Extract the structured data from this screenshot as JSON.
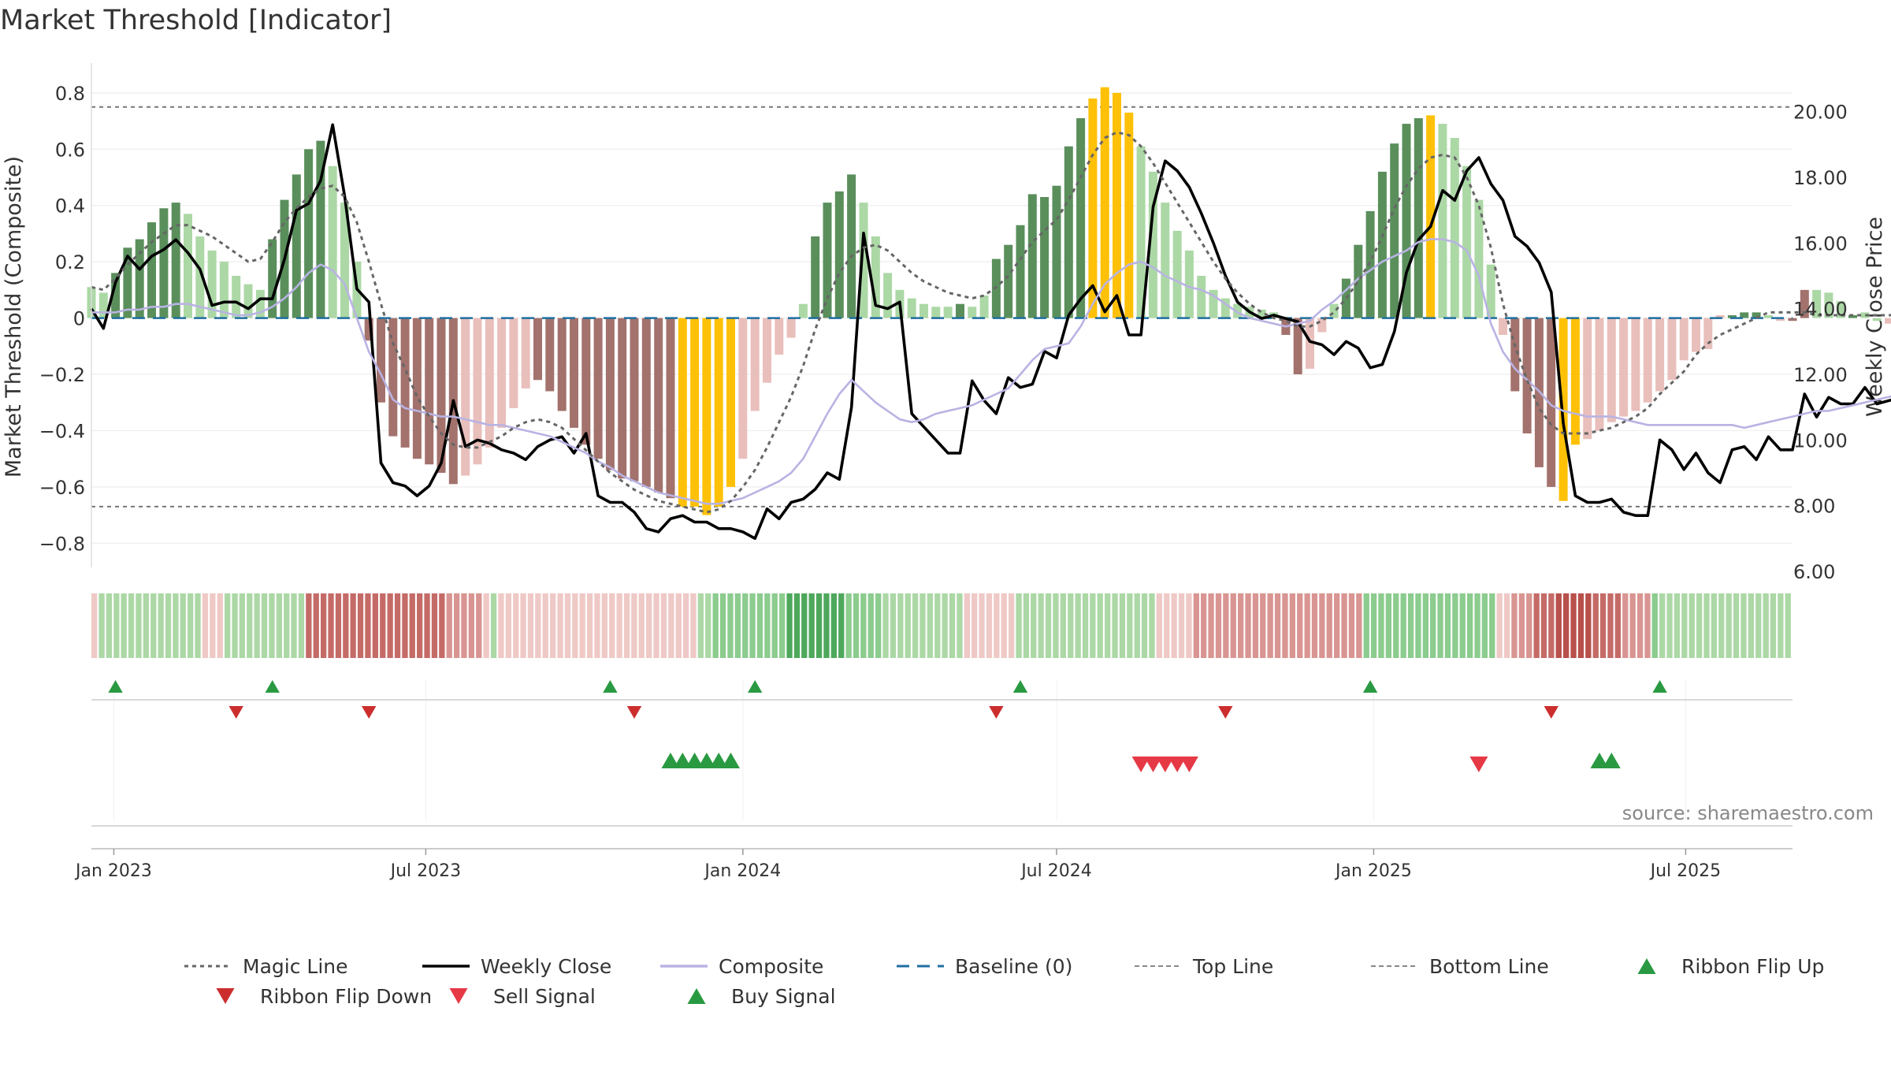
{
  "chart_data": {
    "type": "bar",
    "title": "Market Threshold [Indicator]",
    "ylabel_left": "Market Threshold (Composite)",
    "ylabel_right": "Weekly Close Price",
    "source": "source: sharemaestro.com",
    "y_left_range": [
      -0.9,
      0.85
    ],
    "y_left_ticks": [
      0.8,
      0.6,
      0.4,
      0.2,
      0,
      -0.2,
      -0.4,
      -0.6,
      -0.8
    ],
    "y_left_tick_labels": [
      "0.8",
      "0.6",
      "0.4",
      "0.2",
      "0",
      "−0.2",
      "−0.4",
      "−0.6",
      "−0.8"
    ],
    "y_right_range": [
      6.0,
      21.0
    ],
    "y_right_ticks": [
      20,
      18,
      16,
      14,
      12,
      10,
      8,
      6
    ],
    "y_right_tick_labels": [
      "20.00",
      "18.00",
      "16.00",
      "14.00",
      "12.00",
      "10.00",
      "8.00",
      "6.00"
    ],
    "x_range": [
      "2022-12-19",
      "2025-09-01"
    ],
    "x_ticks": [
      "2023-01-01",
      "2023-07-01",
      "2024-01-01",
      "2024-07-01",
      "2025-01-01",
      "2025-07-01"
    ],
    "x_tick_labels": [
      "Jan 2023",
      "Jul 2023",
      "Jan 2024",
      "Jul 2024",
      "Jan 2025",
      "Jul 2025"
    ],
    "start_date": "2022-12-19",
    "top_line": 0.75,
    "bottom_line": -0.67,
    "colors": {
      "strong_up": "#5a8f5c",
      "weak_up": "#acd8a6",
      "strong_down": "#a3726d",
      "weak_down": "#e9bfbb",
      "extreme": "#ffc107",
      "weekly_close": "#000000",
      "composite": "#b9b3e3",
      "magic_line": "#666666",
      "baseline": "#1f6fa0",
      "threshold": "#777777",
      "ribbon_up": "#2a9a42",
      "ribbon_down": "#cc2e2e",
      "sell": "#e63946",
      "buy": "#2a9a42"
    },
    "composite_bars": [
      0.11,
      0.09,
      0.16,
      0.25,
      0.28,
      0.34,
      0.39,
      0.41,
      0.37,
      0.29,
      0.24,
      0.2,
      0.15,
      0.12,
      0.1,
      0.28,
      0.42,
      0.51,
      0.6,
      0.63,
      0.54,
      0.41,
      0.2,
      -0.08,
      -0.3,
      -0.42,
      -0.46,
      -0.5,
      -0.52,
      -0.55,
      -0.59,
      -0.56,
      -0.52,
      -0.46,
      -0.39,
      -0.32,
      -0.25,
      -0.22,
      -0.26,
      -0.33,
      -0.39,
      -0.45,
      -0.5,
      -0.54,
      -0.57,
      -0.58,
      -0.6,
      -0.62,
      -0.64,
      -0.67,
      -0.67,
      -0.7,
      -0.67,
      -0.6,
      -0.5,
      -0.33,
      -0.23,
      -0.13,
      -0.07,
      0.05,
      0.29,
      0.41,
      0.45,
      0.51,
      0.41,
      0.29,
      0.16,
      0.1,
      0.07,
      0.05,
      0.04,
      0.04,
      0.05,
      0.04,
      0.08,
      0.21,
      0.26,
      0.33,
      0.44,
      0.43,
      0.47,
      0.61,
      0.71,
      0.78,
      0.82,
      0.8,
      0.73,
      0.61,
      0.52,
      0.41,
      0.31,
      0.24,
      0.15,
      0.1,
      0.07,
      0.05,
      0.04,
      0.03,
      0.02,
      -0.06,
      -0.2,
      -0.18,
      -0.05,
      0.05,
      0.14,
      0.26,
      0.38,
      0.52,
      0.62,
      0.69,
      0.71,
      0.72,
      0.69,
      0.64,
      0.54,
      0.42,
      0.19,
      -0.06,
      -0.26,
      -0.41,
      -0.53,
      -0.6,
      -0.65,
      -0.45,
      -0.43,
      -0.4,
      -0.37,
      -0.35,
      -0.33,
      -0.3,
      -0.26,
      -0.22,
      -0.15,
      -0.12,
      -0.11,
      0.01,
      0.01,
      0.02,
      0.02,
      0.01,
      -0.01,
      -0.01,
      0.1,
      0.1,
      0.09,
      0.06,
      0.01,
      0.02,
      -0.01,
      -0.02,
      0.01,
      0.06,
      0.08,
      0.07
    ],
    "bar_categories": [
      "weak_up",
      "weak_up",
      "strong_up",
      "strong_up",
      "strong_up",
      "strong_up",
      "strong_up",
      "strong_up",
      "weak_up",
      "weak_up",
      "weak_up",
      "weak_up",
      "weak_up",
      "weak_up",
      "weak_up",
      "strong_up",
      "strong_up",
      "strong_up",
      "strong_up",
      "strong_up",
      "weak_up",
      "weak_up",
      "weak_up",
      "strong_down",
      "strong_down",
      "strong_down",
      "strong_down",
      "strong_down",
      "strong_down",
      "strong_down",
      "strong_down",
      "weak_down",
      "weak_down",
      "weak_down",
      "weak_down",
      "weak_down",
      "weak_down",
      "strong_down",
      "strong_down",
      "strong_down",
      "strong_down",
      "strong_down",
      "strong_down",
      "strong_down",
      "strong_down",
      "strong_down",
      "strong_down",
      "strong_down",
      "strong_down",
      "extreme",
      "extreme",
      "extreme",
      "extreme",
      "extreme",
      "weak_down",
      "weak_down",
      "weak_down",
      "weak_down",
      "weak_down",
      "weak_up",
      "strong_up",
      "strong_up",
      "strong_up",
      "strong_up",
      "weak_up",
      "weak_up",
      "weak_up",
      "weak_up",
      "weak_up",
      "weak_up",
      "weak_up",
      "weak_up",
      "strong_up",
      "weak_up",
      "weak_up",
      "strong_up",
      "strong_up",
      "strong_up",
      "strong_up",
      "strong_up",
      "strong_up",
      "strong_up",
      "strong_up",
      "extreme",
      "extreme",
      "extreme",
      "extreme",
      "weak_up",
      "weak_up",
      "weak_up",
      "weak_up",
      "weak_up",
      "weak_up",
      "weak_up",
      "weak_up",
      "weak_up",
      "weak_up",
      "weak_up",
      "weak_up",
      "strong_down",
      "strong_down",
      "weak_down",
      "weak_down",
      "weak_up",
      "strong_up",
      "strong_up",
      "strong_up",
      "strong_up",
      "strong_up",
      "strong_up",
      "strong_up",
      "extreme",
      "weak_up",
      "weak_up",
      "weak_up",
      "weak_up",
      "weak_up",
      "weak_down",
      "strong_down",
      "strong_down",
      "strong_down",
      "strong_down",
      "extreme",
      "extreme",
      "weak_down",
      "weak_down",
      "weak_down",
      "weak_down",
      "weak_down",
      "weak_down",
      "weak_down",
      "weak_down",
      "weak_down",
      "weak_down",
      "weak_down",
      "weak_down",
      "strong_up",
      "strong_up",
      "strong_up",
      "weak_up",
      "weak_down",
      "strong_down",
      "strong_down",
      "weak_up",
      "weak_up",
      "weak_up",
      "strong_up",
      "weak_up",
      "weak_up",
      "weak_down",
      "weak_down",
      "strong_up",
      "strong_up",
      "strong_up",
      "weak_up"
    ],
    "series": [
      {
        "name": "Weekly Close",
        "axis": "right",
        "values": [
          14.0,
          13.4,
          14.8,
          15.6,
          15.2,
          15.6,
          15.8,
          16.1,
          15.7,
          15.2,
          14.1,
          14.2,
          14.2,
          14.0,
          14.3,
          14.3,
          15.5,
          17.0,
          17.2,
          17.9,
          19.6,
          17.4,
          14.6,
          14.2,
          9.3,
          8.7,
          8.6,
          8.3,
          8.6,
          9.3,
          11.2,
          9.8,
          10.0,
          9.9,
          9.7,
          9.6,
          9.4,
          9.8,
          10.0,
          10.1,
          9.6,
          10.2,
          8.3,
          8.1,
          8.1,
          7.8,
          7.3,
          7.2,
          7.6,
          7.7,
          7.5,
          7.5,
          7.3,
          7.3,
          7.2,
          7.0,
          7.9,
          7.6,
          8.1,
          8.2,
          8.5,
          9.0,
          8.8,
          11.0,
          16.3,
          14.1,
          14.0,
          14.2,
          10.8,
          10.4,
          10.0,
          9.6,
          9.6,
          11.8,
          11.2,
          10.8,
          11.9,
          11.6,
          11.7,
          12.7,
          12.5,
          13.8,
          14.3,
          14.7,
          13.9,
          14.4,
          13.2,
          13.2,
          17.1,
          18.5,
          18.2,
          17.7,
          16.9,
          16.0,
          15.0,
          14.2,
          13.9,
          13.7,
          13.8,
          13.7,
          13.6,
          13.0,
          12.9,
          12.6,
          13.0,
          12.8,
          12.2,
          12.3,
          13.3,
          15.1,
          16.1,
          16.5,
          17.6,
          17.3,
          18.2,
          18.6,
          17.8,
          17.3,
          16.2,
          15.9,
          15.4,
          14.5,
          10.5,
          8.3,
          8.1,
          8.1,
          8.2,
          7.8,
          7.7,
          7.7,
          10.0,
          9.7,
          9.1,
          9.6,
          9.0,
          8.7,
          9.7,
          9.8,
          9.4,
          10.1,
          9.7,
          9.7,
          11.4,
          10.7,
          11.3,
          11.1,
          11.1,
          11.6,
          11.1,
          11.2,
          11.3,
          11.2,
          11.5,
          11.8,
          11.0
        ],
        "color": "#000000"
      },
      {
        "name": "Composite",
        "axis": "left",
        "values": [
          0.02,
          0.02,
          0.02,
          0.03,
          0.03,
          0.04,
          0.04,
          0.05,
          0.05,
          0.04,
          0.03,
          0.02,
          0.01,
          0.01,
          0.02,
          0.04,
          0.07,
          0.11,
          0.16,
          0.19,
          0.17,
          0.12,
          0.0,
          -0.12,
          -0.2,
          -0.29,
          -0.32,
          -0.33,
          -0.34,
          -0.35,
          -0.35,
          -0.36,
          -0.37,
          -0.38,
          -0.38,
          -0.39,
          -0.4,
          -0.41,
          -0.42,
          -0.44,
          -0.46,
          -0.48,
          -0.51,
          -0.53,
          -0.56,
          -0.58,
          -0.6,
          -0.62,
          -0.63,
          -0.64,
          -0.65,
          -0.66,
          -0.66,
          -0.65,
          -0.64,
          -0.62,
          -0.6,
          -0.58,
          -0.55,
          -0.5,
          -0.42,
          -0.34,
          -0.27,
          -0.22,
          -0.26,
          -0.3,
          -0.33,
          -0.36,
          -0.37,
          -0.36,
          -0.34,
          -0.33,
          -0.32,
          -0.31,
          -0.29,
          -0.27,
          -0.25,
          -0.2,
          -0.15,
          -0.11,
          -0.1,
          -0.09,
          -0.03,
          0.05,
          0.12,
          0.16,
          0.19,
          0.2,
          0.18,
          0.15,
          0.13,
          0.11,
          0.1,
          0.08,
          0.05,
          0.02,
          0.0,
          -0.01,
          -0.02,
          -0.03,
          -0.02,
          -0.01,
          0.03,
          0.06,
          0.1,
          0.14,
          0.17,
          0.2,
          0.22,
          0.24,
          0.27,
          0.28,
          0.28,
          0.27,
          0.24,
          0.15,
          -0.02,
          -0.12,
          -0.18,
          -0.22,
          -0.26,
          -0.31,
          -0.33,
          -0.34,
          -0.35,
          -0.35,
          -0.35,
          -0.36,
          -0.37,
          -0.38,
          -0.38,
          -0.38,
          -0.38,
          -0.38,
          -0.38,
          -0.38,
          -0.38,
          -0.39,
          -0.38,
          -0.37,
          -0.36,
          -0.35,
          -0.34,
          -0.33,
          -0.33,
          -0.32,
          -0.31,
          -0.3,
          -0.29,
          -0.28,
          -0.27,
          -0.27,
          -0.27,
          -0.27
        ],
        "color": "#b9b3e3"
      },
      {
        "name": "Magic Line",
        "axis": "left",
        "values": [
          0.11,
          0.1,
          0.14,
          0.19,
          0.23,
          0.27,
          0.3,
          0.33,
          0.33,
          0.31,
          0.29,
          0.26,
          0.23,
          0.2,
          0.21,
          0.27,
          0.34,
          0.39,
          0.43,
          0.46,
          0.47,
          0.43,
          0.34,
          0.2,
          0.05,
          -0.09,
          -0.18,
          -0.28,
          -0.35,
          -0.41,
          -0.45,
          -0.46,
          -0.46,
          -0.44,
          -0.42,
          -0.39,
          -0.37,
          -0.36,
          -0.37,
          -0.39,
          -0.43,
          -0.47,
          -0.51,
          -0.55,
          -0.58,
          -0.61,
          -0.63,
          -0.65,
          -0.66,
          -0.67,
          -0.68,
          -0.69,
          -0.68,
          -0.65,
          -0.6,
          -0.54,
          -0.46,
          -0.37,
          -0.28,
          -0.17,
          -0.04,
          0.07,
          0.16,
          0.22,
          0.25,
          0.26,
          0.24,
          0.2,
          0.16,
          0.13,
          0.11,
          0.09,
          0.08,
          0.07,
          0.08,
          0.11,
          0.15,
          0.21,
          0.27,
          0.31,
          0.35,
          0.42,
          0.5,
          0.58,
          0.64,
          0.66,
          0.65,
          0.61,
          0.55,
          0.48,
          0.41,
          0.34,
          0.27,
          0.2,
          0.14,
          0.09,
          0.05,
          0.02,
          0.0,
          -0.01,
          -0.03,
          -0.03,
          -0.01,
          0.02,
          0.07,
          0.13,
          0.2,
          0.29,
          0.39,
          0.47,
          0.53,
          0.57,
          0.58,
          0.57,
          0.5,
          0.4,
          0.25,
          0.05,
          -0.1,
          -0.22,
          -0.32,
          -0.38,
          -0.41,
          -0.41,
          -0.41,
          -0.4,
          -0.39,
          -0.37,
          -0.35,
          -0.32,
          -0.27,
          -0.23,
          -0.19,
          -0.13,
          -0.09,
          -0.06,
          -0.04,
          -0.02,
          0.0,
          0.02,
          0.02,
          0.02,
          0.02,
          0.01,
          0.01,
          0.01,
          0.01,
          0.01,
          0.01,
          0.01,
          0.01
        ],
        "color": "#666666"
      },
      {
        "name": "Baseline (0)",
        "value": 0
      },
      {
        "name": "Top Line",
        "value": 0.75
      },
      {
        "name": "Bottom Line",
        "value": -0.67
      }
    ],
    "ribbon": [
      -1,
      1,
      1,
      1,
      1,
      1,
      1,
      1,
      1,
      1,
      1,
      1,
      1,
      1,
      1,
      -1,
      -1,
      -1,
      1,
      1,
      1,
      1,
      1,
      1,
      1,
      1,
      1,
      1,
      1,
      -3,
      -3,
      -3,
      -3,
      -3,
      -3,
      -3,
      -3,
      -3,
      -3,
      -3,
      -3,
      -3,
      -3,
      -3,
      -3,
      -3,
      -3,
      -3,
      -2,
      -2,
      -2,
      -2,
      -2,
      -1,
      1,
      -1,
      -1,
      -1,
      -1,
      -1,
      -1,
      -1,
      -1,
      -1,
      -1,
      -1,
      -1,
      -1,
      -1,
      -1,
      -1,
      -1,
      -1,
      -1,
      -1,
      -1,
      -1,
      -1,
      -1,
      -1,
      -1,
      -1,
      1,
      1,
      2,
      2,
      2,
      2,
      2,
      2,
      2,
      2,
      2,
      2,
      3,
      3,
      3,
      3,
      3,
      3,
      3,
      3,
      2,
      2,
      2,
      2,
      2,
      1,
      1,
      1,
      1,
      1,
      1,
      1,
      1,
      1,
      1,
      1,
      -1,
      -1,
      -1,
      -1,
      -1,
      -1,
      -1,
      1,
      1,
      1,
      1,
      1,
      1,
      1,
      1,
      1,
      1,
      1,
      1,
      1,
      1,
      1,
      1,
      1,
      1,
      1,
      -1,
      -1,
      -1,
      -1,
      -1,
      -2,
      -2,
      -2,
      -2,
      -2,
      -2,
      -2,
      -2,
      -2,
      -2,
      -2,
      -2,
      -2,
      -2,
      -2,
      -2,
      -2,
      -2,
      -2,
      -2,
      -2,
      -2,
      -2,
      2,
      2,
      2,
      2,
      2,
      2,
      2,
      2,
      2,
      2,
      2,
      2,
      2,
      2,
      2,
      2,
      2,
      2,
      -1,
      -1,
      -2,
      -2,
      -2,
      -3,
      -3,
      -3,
      -4,
      -4,
      -4,
      -4,
      -4,
      -3,
      -3,
      -3,
      -3,
      -2,
      -2,
      -2,
      -2,
      2,
      1,
      1,
      1,
      1,
      1,
      1,
      1,
      1,
      1,
      1,
      1,
      1,
      1,
      1,
      1,
      1,
      1,
      1
    ],
    "ribbon_flip_up": [
      "2023-01-02",
      "2023-04-03",
      "2023-10-16",
      "2024-01-08",
      "2024-06-10",
      "2024-12-30",
      "2025-06-16"
    ],
    "ribbon_flip_down": [
      "2023-03-13",
      "2023-05-29",
      "2023-10-30",
      "2024-05-27",
      "2024-10-07",
      "2025-04-14"
    ],
    "buy_signals": [
      "2023-11-20",
      "2023-11-27",
      "2023-12-04",
      "2023-12-11",
      "2023-12-18",
      "2023-12-25",
      "2025-05-12",
      "2025-05-19"
    ],
    "sell_signals": [
      "2024-08-19",
      "2024-08-26",
      "2024-09-02",
      "2024-09-09",
      "2024-09-16",
      "2025-03-03"
    ],
    "legend_position": "bottom",
    "legend": [
      {
        "name": "Magic Line",
        "kind": "dotted",
        "color": "#666666"
      },
      {
        "name": "Weekly Close",
        "kind": "solid",
        "color": "#000000"
      },
      {
        "name": "Composite",
        "kind": "solid",
        "color": "#b9b3e3"
      },
      {
        "name": "Baseline (0)",
        "kind": "dashed",
        "color": "#1f6fa0"
      },
      {
        "name": "Top Line",
        "kind": "dashed-thin",
        "color": "#888888"
      },
      {
        "name": "Bottom Line",
        "kind": "dashed-thin",
        "color": "#888888"
      },
      {
        "name": "Ribbon Flip Up",
        "kind": "tri-up",
        "color": "#2a9a42"
      },
      {
        "name": "Ribbon Flip Down",
        "kind": "tri-down",
        "color": "#cc2e2e"
      },
      {
        "name": "Sell Signal",
        "kind": "tri-down",
        "color": "#e63946"
      },
      {
        "name": "Buy Signal",
        "kind": "tri-up",
        "color": "#2a9a42"
      }
    ]
  }
}
